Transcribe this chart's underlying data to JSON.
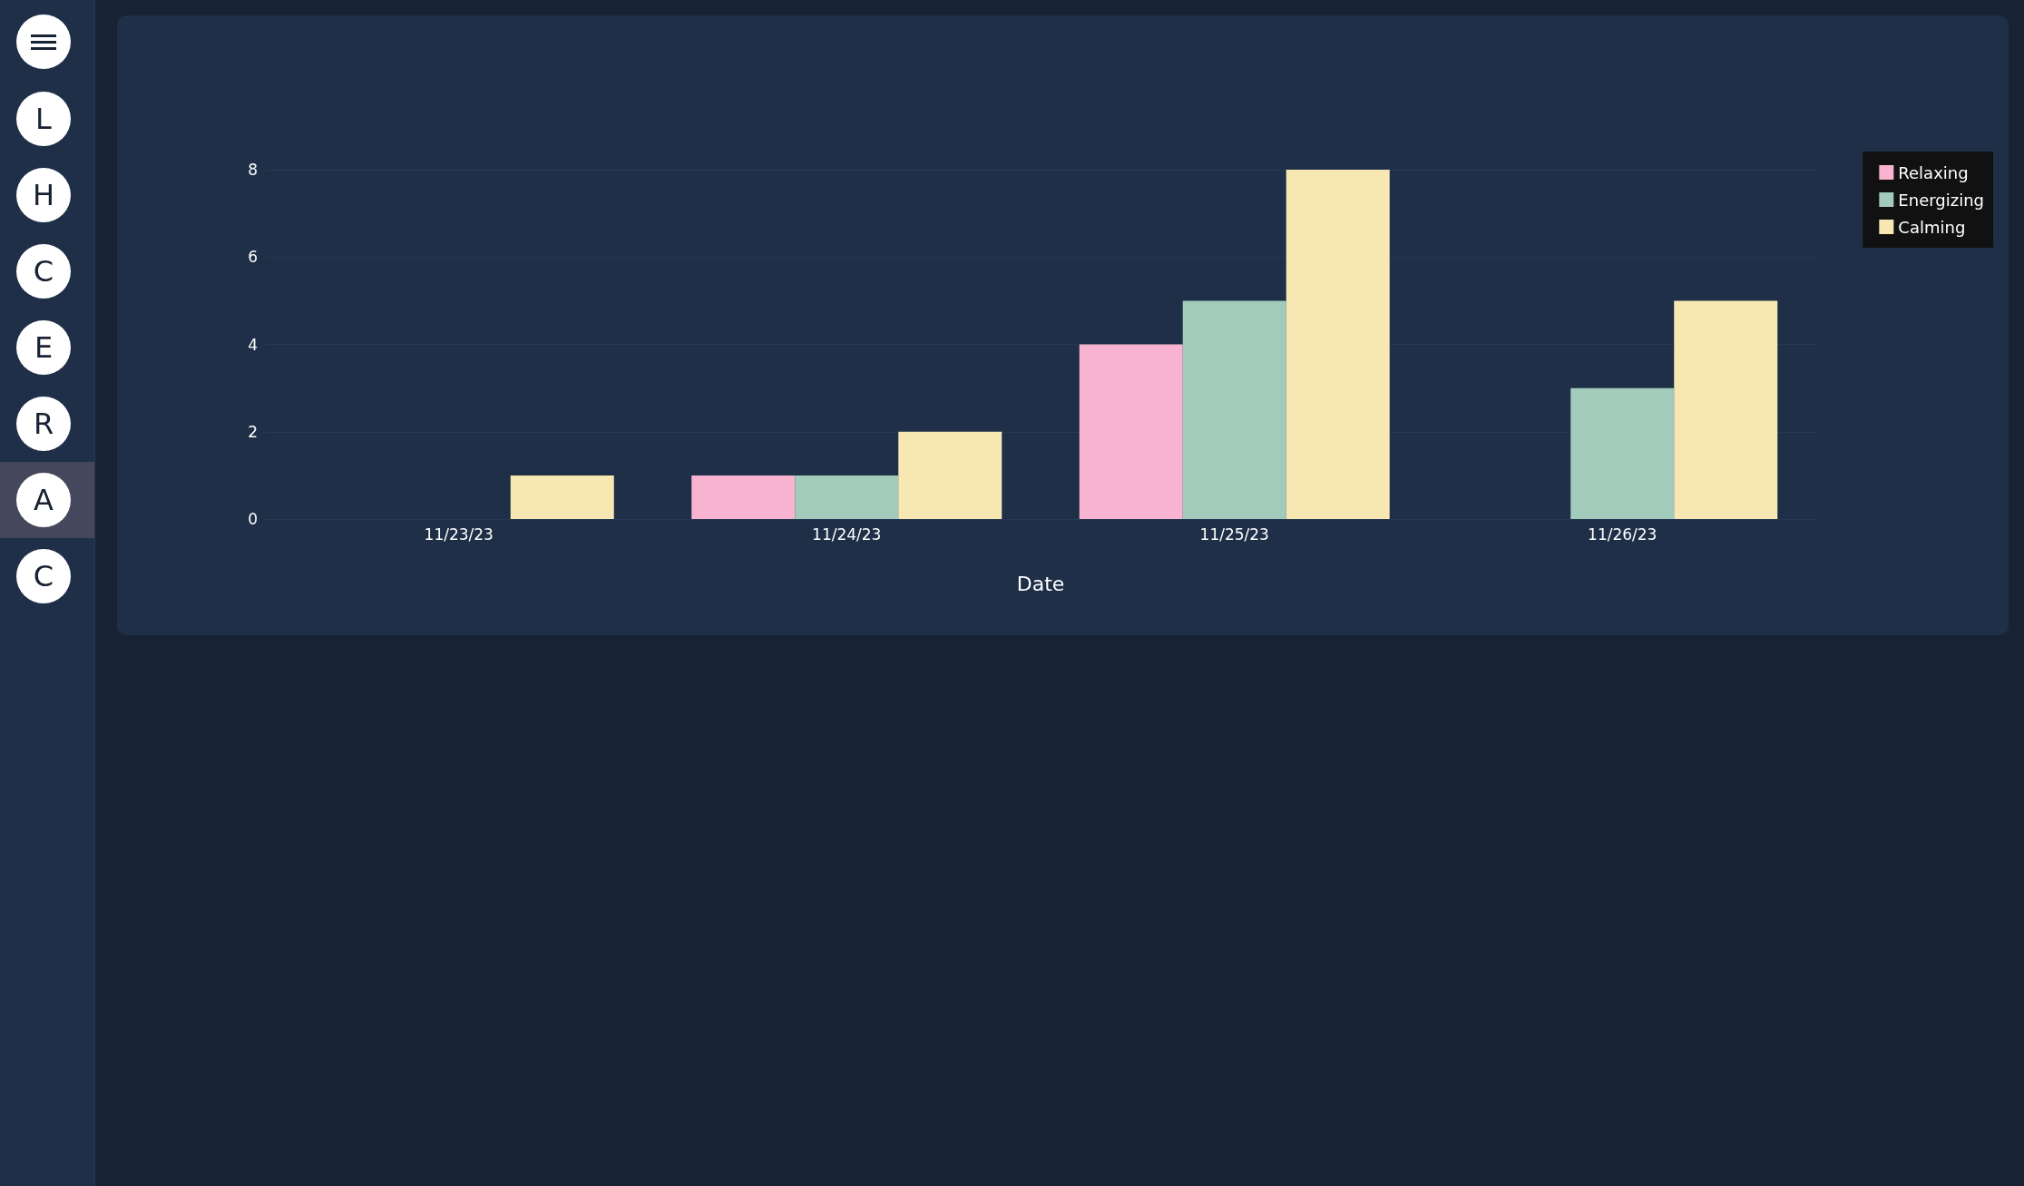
{
  "chart_data": {
    "type": "bar",
    "xlabel": "Date",
    "categories": [
      "11/23/23",
      "11/24/23",
      "11/25/23",
      "11/26/23"
    ],
    "series": [
      {
        "name": "Relaxing",
        "color": "#f7b3cf",
        "values": [
          0,
          1,
          4,
          0
        ]
      },
      {
        "name": "Energizing",
        "color": "#a3cbbb",
        "values": [
          0,
          1,
          5,
          3
        ]
      },
      {
        "name": "Calming",
        "color": "#f7e8b3",
        "values": [
          1,
          2,
          8,
          5
        ]
      }
    ],
    "ylim": [
      0,
      8
    ],
    "yticks": [
      0,
      2,
      4,
      6,
      8
    ],
    "grid": "y",
    "legend": "top right",
    "annotations": [
      "L",
      "H",
      "C",
      "E",
      "R",
      "A",
      "C"
    ]
  }
}
